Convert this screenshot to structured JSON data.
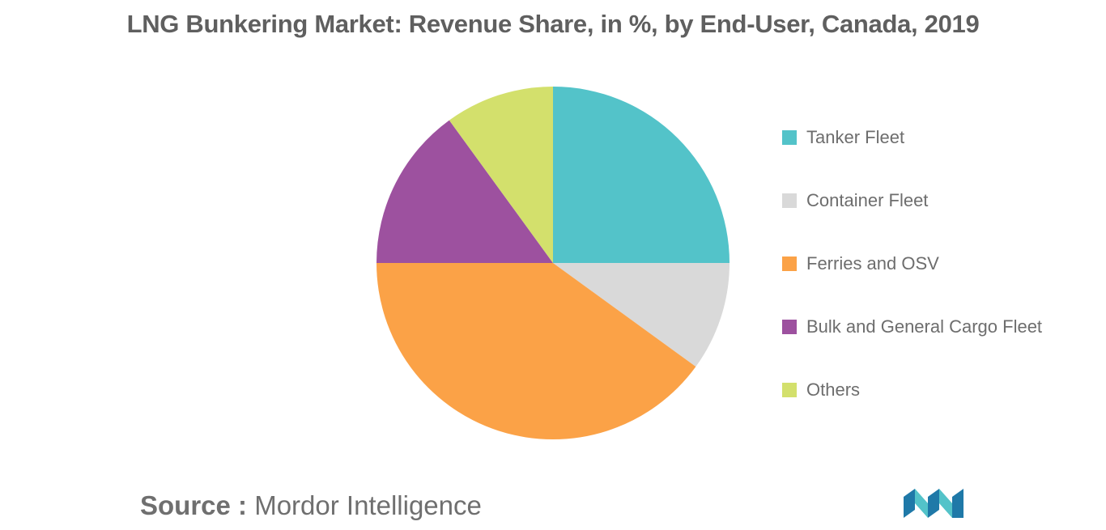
{
  "title": "LNG Bunkering Market: Revenue Share, in %, by End-User, Canada, 2019",
  "chart_data": {
    "type": "pie",
    "title": "LNG Bunkering Market: Revenue Share, in %, by End-User, Canada, 2019",
    "slices": [
      {
        "label": "Tanker Fleet",
        "value": 25,
        "color": "#53c3c9"
      },
      {
        "label": "Container Fleet",
        "value": 10,
        "color": "#d9d9d9"
      },
      {
        "label": "Ferries and OSV",
        "value": 40,
        "color": "#fba247"
      },
      {
        "label": "Bulk and General Cargo Fleet",
        "value": 15,
        "color": "#9d519f"
      },
      {
        "label": "Others",
        "value": 10,
        "color": "#d3e06c"
      }
    ],
    "legend_position": "right"
  },
  "source": {
    "prefix": "Source :",
    "text": "Mordor Intelligence"
  },
  "logo": {
    "icon": "mordor-intelligence-logo",
    "colors": [
      "#1f79a8",
      "#53c3c9"
    ]
  }
}
